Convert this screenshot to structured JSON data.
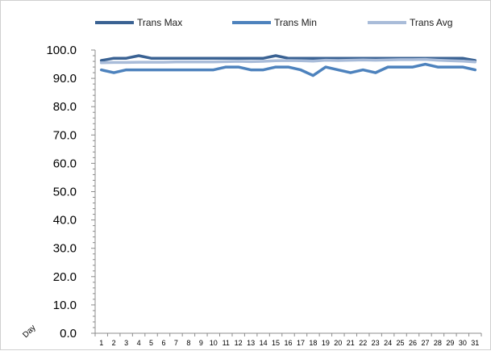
{
  "chart_data": {
    "type": "line",
    "title": "",
    "xlabel": "Day",
    "ylabel": "",
    "ylim": [
      0,
      100
    ],
    "yticks": [
      "0.0",
      "10.0",
      "20.0",
      "30.0",
      "40.0",
      "50.0",
      "60.0",
      "70.0",
      "80.0",
      "90.0",
      "100.0"
    ],
    "x": [
      1,
      2,
      3,
      4,
      5,
      6,
      7,
      8,
      9,
      10,
      11,
      12,
      13,
      14,
      15,
      16,
      17,
      18,
      19,
      20,
      21,
      22,
      23,
      24,
      25,
      26,
      27,
      28,
      29,
      30,
      31
    ],
    "grid": false,
    "legend_position": "top",
    "series": [
      {
        "name": "Trans Max",
        "color": "#3a6293",
        "values": [
          96.3,
          97.1,
          97.1,
          98.0,
          97.1,
          97.1,
          97.1,
          97.1,
          97.1,
          97.1,
          97.1,
          97.1,
          97.1,
          97.1,
          98.0,
          97.1,
          97.1,
          97.1,
          97.1,
          97.1,
          97.1,
          97.1,
          97.1,
          97.1,
          97.1,
          97.1,
          97.1,
          97.1,
          97.1,
          97.1,
          96.3
        ]
      },
      {
        "name": "Trans Min",
        "color": "#4d82bd",
        "values": [
          93.0,
          92.0,
          93.0,
          93.0,
          93.0,
          93.0,
          93.0,
          93.0,
          93.0,
          93.0,
          94.0,
          94.0,
          93.0,
          93.0,
          94.0,
          94.0,
          93.0,
          91.0,
          94.0,
          93.0,
          92.0,
          93.0,
          92.0,
          94.0,
          94.0,
          94.0,
          95.0,
          94.0,
          94.0,
          94.0,
          93.0
        ]
      },
      {
        "name": "Trans Avg",
        "color": "#a9bcd9",
        "values": [
          95.5,
          95.6,
          95.6,
          95.7,
          95.7,
          95.7,
          95.8,
          95.8,
          95.8,
          95.8,
          95.9,
          96.0,
          95.9,
          96.0,
          96.2,
          96.3,
          96.2,
          96.1,
          96.4,
          96.3,
          96.4,
          96.5,
          96.4,
          96.5,
          96.6,
          96.6,
          96.7,
          96.4,
          96.2,
          96.1,
          95.8
        ]
      }
    ]
  }
}
